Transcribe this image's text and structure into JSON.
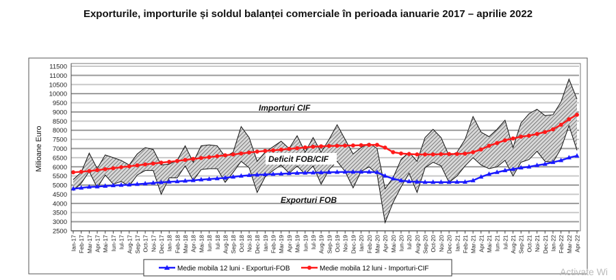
{
  "chart_data": {
    "type": "line",
    "title": "Exporturile, importurile și soldul balanței comerciale în perioada ianuarie 2017 – aprilie 2022",
    "ylabel": "Milioane Euro",
    "xlabel": "",
    "ylim": [
      2500,
      11500
    ],
    "yticks": [
      2500,
      3000,
      3500,
      4000,
      4500,
      5000,
      5500,
      6000,
      6500,
      7000,
      7500,
      8000,
      8500,
      9000,
      9500,
      10000,
      10500,
      11000,
      11500
    ],
    "grid": true,
    "legend_position": "bottom",
    "categories": [
      "Ian-17",
      "Feb-17",
      "Mar-17",
      "Apr-17",
      "Mai-17",
      "Iun-17",
      "Iul-17",
      "Aug-17",
      "Sep-17",
      "Oct-17",
      "Noi-17",
      "Dec-17",
      "Ian-18",
      "Feb-18",
      "Mar-18",
      "Apr-18",
      "Mai-18",
      "Iun-18",
      "Iul-18",
      "Aug-18",
      "Sep-18",
      "Oct-18",
      "Noi-18",
      "Dec-18",
      "Ian-19",
      "Feb-19",
      "Mar-19",
      "Apr-19",
      "Mai-19",
      "Iun-19",
      "Iul-19",
      "Aug-19",
      "Sep-19",
      "Oct-19",
      "Noi-19",
      "Dec-19",
      "Ian-20",
      "Feb-20",
      "Mar-20",
      "Apr-20",
      "Mai-20",
      "Iun-20",
      "Iul-20",
      "Aug-20",
      "Sep-20",
      "Oct-20",
      "Noi-20",
      "Dec-20",
      "Ian-21",
      "Feb-21",
      "Mar-21",
      "Apr-21",
      "Mai-21",
      "Iun-21",
      "Iul-21",
      "Aug-21",
      "Sep-21",
      "Oct-21",
      "Noi-21",
      "Dec-21",
      "Ian-22",
      "Feb-22",
      "Mar-22",
      "Apr-22"
    ],
    "series": [
      {
        "name": "Importuri CIF",
        "values": [
          5300,
          5700,
          6750,
          5900,
          6650,
          6500,
          6350,
          6100,
          6700,
          7050,
          6950,
          6100,
          6150,
          6350,
          7150,
          6250,
          7150,
          7200,
          7150,
          6550,
          6800,
          8200,
          7600,
          6300,
          6800,
          7100,
          7400,
          7000,
          7700,
          6800,
          7600,
          6800,
          7500,
          8300,
          7500,
          6700,
          7050,
          7300,
          7000,
          4800,
          5400,
          6400,
          6800,
          6300,
          7600,
          8050,
          7600,
          6600,
          6800,
          7500,
          8750,
          7900,
          7650,
          8050,
          8550,
          7050,
          8400,
          8900,
          9150,
          8800,
          8850,
          9550,
          10800,
          9700
        ]
      },
      {
        "name": "Exporturi FOB",
        "values": [
          4700,
          5100,
          5750,
          4850,
          5550,
          5050,
          5200,
          4950,
          5550,
          5800,
          5800,
          4500,
          5400,
          5400,
          6050,
          5250,
          5850,
          5900,
          5900,
          5150,
          5700,
          6300,
          5950,
          4600,
          5450,
          5800,
          6100,
          5650,
          6050,
          5600,
          6050,
          5050,
          5850,
          6300,
          5750,
          4850,
          5750,
          6000,
          5600,
          2950,
          4050,
          4900,
          5650,
          4600,
          5950,
          6250,
          6050,
          5150,
          5500,
          6050,
          6500,
          6100,
          5900,
          6000,
          6350,
          5500,
          6250,
          6400,
          6850,
          6300,
          6250,
          7000,
          8250,
          6900
        ]
      },
      {
        "name": "Medie mobila 12 luni - Exporturi-FOB",
        "color": "#1a1aff",
        "marker": "triangle",
        "values": [
          4800,
          4850,
          4900,
          4920,
          4950,
          4980,
          5000,
          5020,
          5050,
          5080,
          5120,
          5150,
          5180,
          5200,
          5230,
          5260,
          5300,
          5330,
          5360,
          5400,
          5450,
          5500,
          5540,
          5560,
          5580,
          5600,
          5620,
          5640,
          5660,
          5670,
          5680,
          5690,
          5700,
          5710,
          5720,
          5720,
          5720,
          5720,
          5700,
          5500,
          5350,
          5250,
          5200,
          5180,
          5160,
          5160,
          5160,
          5160,
          5170,
          5170,
          5250,
          5450,
          5600,
          5700,
          5800,
          5870,
          5950,
          6000,
          6080,
          6150,
          6250,
          6350,
          6500,
          6600
        ]
      },
      {
        "name": "Medie mobila 12 luni - Importuri-CIF",
        "color": "#ff1a1a",
        "marker": "circle",
        "values": [
          5700,
          5730,
          5770,
          5820,
          5870,
          5920,
          5980,
          6030,
          6080,
          6130,
          6180,
          6230,
          6270,
          6320,
          6380,
          6430,
          6480,
          6530,
          6580,
          6630,
          6680,
          6730,
          6780,
          6830,
          6870,
          6900,
          6940,
          6980,
          7020,
          7060,
          7100,
          7120,
          7140,
          7150,
          7160,
          7170,
          7180,
          7200,
          7200,
          7050,
          6800,
          6730,
          6700,
          6680,
          6680,
          6680,
          6690,
          6700,
          6700,
          6720,
          6800,
          6950,
          7150,
          7300,
          7450,
          7550,
          7650,
          7700,
          7800,
          7900,
          8050,
          8300,
          8600,
          8850
        ]
      }
    ],
    "annotations": [
      "Importuri CIF",
      "Deficit FOB/CIF",
      "Exporturi FOB"
    ]
  },
  "watermark": "Activate Wi"
}
